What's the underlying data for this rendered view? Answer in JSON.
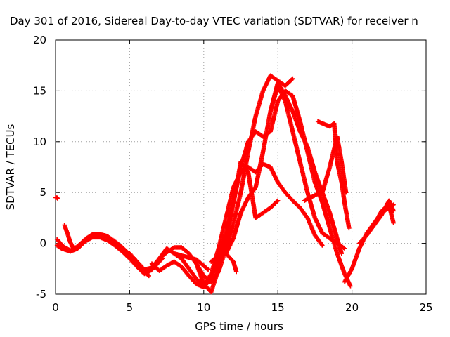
{
  "chart_data": {
    "type": "scatter",
    "title": "Day 301 of 2016, Sidereal Day-to-day VTEC variation (SDTVAR) for receiver n",
    "xlabel": "GPS time / hours",
    "ylabel": "SDTVAR / TECUs",
    "xlim": [
      0,
      25
    ],
    "ylim": [
      -5,
      20
    ],
    "xticks": [
      0,
      5,
      10,
      15,
      20,
      25
    ],
    "yticks": [
      -5,
      0,
      5,
      10,
      15,
      20
    ],
    "grid": true,
    "marker": "+",
    "color": "#ff0000",
    "series": [
      {
        "x": [
          0,
          0.05,
          0.1,
          0.15
        ],
        "y": [
          4.5,
          4.5,
          4.5,
          4.4
        ]
      },
      {
        "x": [
          0.1,
          0.4,
          0.8,
          1.0,
          1.5,
          2.0,
          2.5,
          3.0,
          3.5,
          4.0,
          4.5,
          5.0,
          5.5,
          6.0,
          6.5,
          7.0,
          7.2
        ],
        "y": [
          -0.2,
          -0.5,
          -0.7,
          -0.8,
          -0.5,
          0.2,
          0.6,
          0.6,
          0.3,
          -0.2,
          -0.8,
          -1.5,
          -2.3,
          -3.0,
          -2.6,
          -1.8,
          -1.5
        ]
      },
      {
        "x": [
          0.1,
          0.5,
          1.0,
          1.5,
          2.0,
          2.5,
          3.0,
          3.5,
          4.0,
          4.5,
          5.0,
          5.5,
          6.0,
          6.3
        ],
        "y": [
          0.4,
          -0.3,
          -0.7,
          -0.3,
          0.4,
          0.9,
          0.9,
          0.7,
          0.2,
          -0.4,
          -1.1,
          -2.0,
          -2.8,
          -3.2
        ]
      },
      {
        "x": [
          0.6,
          0.8,
          1.0,
          1.2
        ],
        "y": [
          1.8,
          1.0,
          0.1,
          -0.5
        ]
      },
      {
        "x": [
          5.0,
          5.5,
          6.0,
          6.5,
          7.0,
          7.5,
          8.0,
          8.5,
          9.0,
          9.5,
          10.0,
          10.5,
          11.0,
          11.5,
          12.0,
          12.5,
          13.0,
          13.5,
          14.0,
          14.5,
          15.0,
          15.5,
          16.0
        ],
        "y": [
          -1.0,
          -1.8,
          -2.6,
          -2.4,
          -1.5,
          -0.9,
          -0.4,
          -0.4,
          -1.0,
          -2.0,
          -3.2,
          -3.8,
          -2.8,
          -0.5,
          2.0,
          5.0,
          9.0,
          12.5,
          15.0,
          16.5,
          16.0,
          15.5,
          16.2
        ]
      },
      {
        "x": [
          6.5,
          7.0,
          7.5,
          8.0,
          8.5,
          9.0,
          9.5,
          10.0,
          10.5,
          11.0,
          11.5,
          12.0,
          12.5,
          13.0,
          13.5,
          14.0,
          14.5,
          15.0,
          15.5,
          16.0,
          16.5,
          17.0,
          17.5,
          18.0,
          18.5,
          19.0,
          19.5,
          19.9
        ],
        "y": [
          -2.0,
          -2.7,
          -2.2,
          -1.8,
          -2.3,
          -3.2,
          -4.0,
          -4.3,
          -3.5,
          -1.5,
          1.0,
          4.0,
          7.5,
          10.0,
          11.0,
          10.5,
          11.0,
          14.0,
          15.0,
          14.5,
          12.0,
          9.0,
          6.0,
          4.0,
          1.5,
          -1.0,
          -3.0,
          -4.2
        ]
      },
      {
        "x": [
          7.0,
          7.5,
          8.0,
          8.5,
          9.0,
          9.5,
          10.0,
          10.5,
          11.0,
          11.5,
          12.0,
          12.5,
          13.0,
          13.5,
          14.0,
          14.5,
          15.0,
          15.5,
          16.0,
          16.5,
          17.0,
          17.5,
          18.0
        ],
        "y": [
          -1.5,
          -0.5,
          -1.0,
          -1.5,
          -2.5,
          -3.5,
          -4.2,
          -3.0,
          -0.5,
          2.5,
          5.5,
          7.0,
          7.5,
          7.0,
          7.8,
          7.5,
          6.0,
          5.0,
          4.2,
          3.5,
          2.5,
          0.8,
          -0.2
        ]
      },
      {
        "x": [
          8.0,
          8.5,
          9.0,
          9.5,
          10.0,
          10.3
        ],
        "y": [
          -1.0,
          -1.2,
          -1.4,
          -1.6,
          -2.2,
          -2.6
        ]
      },
      {
        "x": [
          9.5,
          10.0,
          10.5,
          11.0,
          11.5,
          12.0,
          12.5,
          13.0,
          13.5,
          14.0,
          14.5,
          15.0
        ],
        "y": [
          -2.0,
          -4.0,
          -4.8,
          -2.5,
          0.5,
          4.0,
          8.0,
          7.0,
          2.5,
          3.0,
          3.5,
          4.2
        ]
      },
      {
        "x": [
          10.5,
          11.0,
          11.5,
          12.0,
          12.2
        ],
        "y": [
          -1.8,
          -1.2,
          -1.0,
          -1.8,
          -2.8
        ]
      },
      {
        "x": [
          11.5,
          12.0,
          12.5,
          13.0,
          13.5,
          14.0,
          14.5,
          15.0,
          15.5,
          16.0,
          16.5,
          17.0,
          17.5,
          18.0,
          18.5,
          19.0,
          19.5
        ],
        "y": [
          -1.0,
          0.5,
          3.0,
          4.5,
          5.5,
          9.0,
          13.0,
          15.5,
          14.0,
          11.0,
          8.0,
          5.0,
          2.5,
          1.0,
          0.5,
          0.0,
          -0.5
        ]
      },
      {
        "x": [
          14.5,
          15.0,
          15.5,
          16.0,
          16.5,
          17.0,
          17.5,
          18.0,
          18.5,
          19.0,
          19.3
        ],
        "y": [
          13.0,
          15.8,
          14.5,
          13.0,
          11.0,
          9.5,
          7.0,
          5.0,
          3.0,
          0.5,
          -1.0
        ]
      },
      {
        "x": [
          16.8,
          17.2,
          17.6,
          18.0,
          18.5,
          19.0,
          19.3,
          19.6
        ],
        "y": [
          4.2,
          4.5,
          4.8,
          5.0,
          7.5,
          10.5,
          8.0,
          5.0
        ]
      },
      {
        "x": [
          17.7,
          18.0,
          18.5,
          18.8,
          19.0,
          19.3,
          19.5,
          19.8
        ],
        "y": [
          12.0,
          11.8,
          11.5,
          11.8,
          8.0,
          6.0,
          4.0,
          1.5
        ]
      },
      {
        "x": [
          19.5,
          20.0,
          20.5,
          21.0,
          21.5,
          22.0,
          22.5,
          22.8
        ],
        "y": [
          -3.8,
          -2.5,
          -0.5,
          1.0,
          2.0,
          3.0,
          3.5,
          3.8
        ]
      },
      {
        "x": [
          20.5,
          21.0,
          21.5,
          22.0,
          22.5,
          22.8
        ],
        "y": [
          0.0,
          0.8,
          1.8,
          2.8,
          4.2,
          3.2
        ]
      },
      {
        "x": [
          21.5,
          22.0,
          22.5,
          22.8
        ],
        "y": [
          1.8,
          3.2,
          3.8,
          2.0
        ]
      }
    ]
  }
}
